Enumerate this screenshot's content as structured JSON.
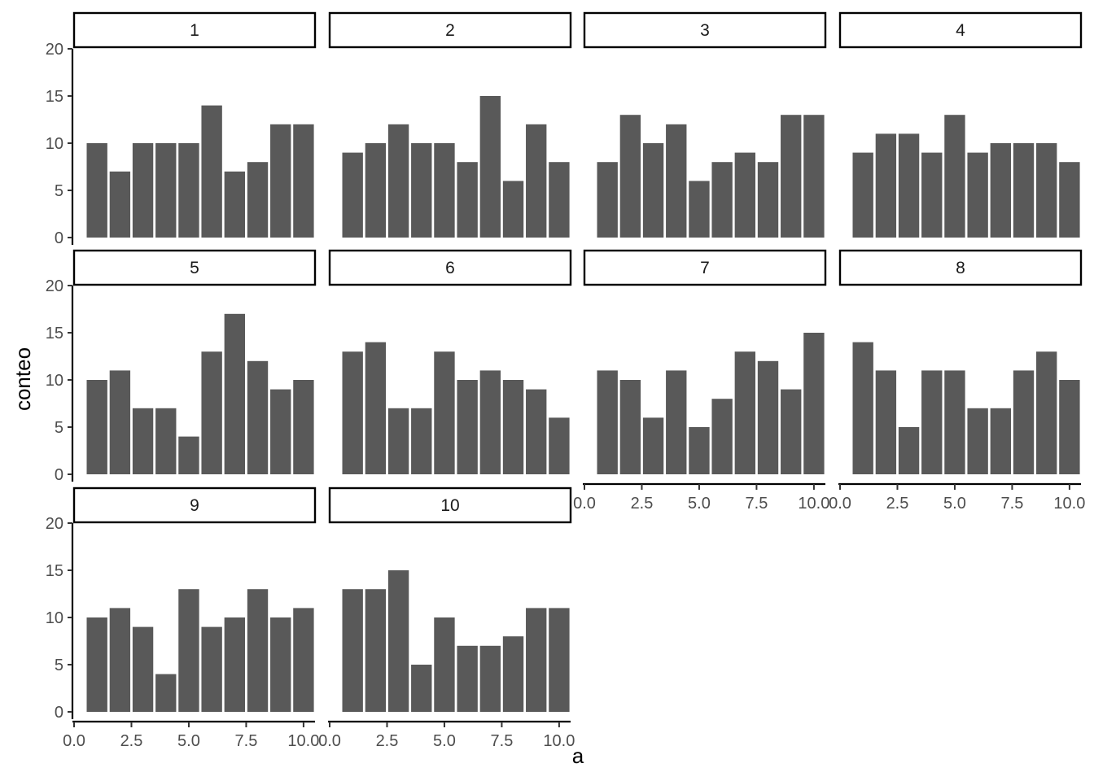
{
  "chart_data": {
    "type": "bar",
    "xlabel": "a",
    "ylabel": "conteo",
    "xlim": [
      0,
      10.5
    ],
    "ylim": [
      0,
      20
    ],
    "x_ticks": [
      "0.0",
      "2.5",
      "5.0",
      "7.5",
      "10.0"
    ],
    "x_tick_values": [
      0,
      2.5,
      5,
      7.5,
      10
    ],
    "y_ticks": [
      "0",
      "5",
      "10",
      "15",
      "20"
    ],
    "y_tick_values": [
      0,
      5,
      10,
      15,
      20
    ],
    "categories": [
      1,
      2,
      3,
      4,
      5,
      6,
      7,
      8,
      9,
      10
    ],
    "facets": [
      {
        "label": "1",
        "values": [
          10,
          7,
          10,
          10,
          10,
          14,
          7,
          8,
          12,
          12
        ]
      },
      {
        "label": "2",
        "values": [
          9,
          10,
          12,
          10,
          10,
          8,
          15,
          6,
          12,
          8
        ]
      },
      {
        "label": "3",
        "values": [
          8,
          13,
          10,
          12,
          6,
          8,
          9,
          8,
          13,
          13
        ]
      },
      {
        "label": "4",
        "values": [
          9,
          11,
          11,
          9,
          13,
          9,
          10,
          10,
          10,
          8
        ]
      },
      {
        "label": "5",
        "values": [
          10,
          11,
          7,
          7,
          4,
          13,
          17,
          12,
          9,
          10
        ]
      },
      {
        "label": "6",
        "values": [
          13,
          14,
          7,
          7,
          13,
          10,
          11,
          10,
          9,
          6
        ]
      },
      {
        "label": "7",
        "values": [
          11,
          10,
          6,
          11,
          5,
          8,
          13,
          12,
          9,
          15
        ]
      },
      {
        "label": "8",
        "values": [
          14,
          11,
          5,
          11,
          11,
          7,
          7,
          11,
          13,
          10
        ]
      },
      {
        "label": "9",
        "values": [
          10,
          11,
          9,
          4,
          13,
          9,
          10,
          13,
          10,
          11
        ]
      },
      {
        "label": "10",
        "values": [
          13,
          13,
          15,
          5,
          10,
          7,
          7,
          8,
          11,
          11
        ]
      }
    ],
    "bar_color": "#595959",
    "grid": false,
    "layout": "facet_wrap 4 columns"
  }
}
